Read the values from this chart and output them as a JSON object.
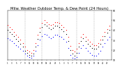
{
  "title": "Milw. Weather Outdoor Temp. & Dew Point (24 Hours)",
  "title_fontsize": 3.8,
  "background_color": "#ffffff",
  "grid_color": "#aaaaaa",
  "temp_color": "#ff0000",
  "dewpoint_color": "#0000ff",
  "dot_color": "#000000",
  "marker_size": 0.8,
  "ylim": [
    10,
    60
  ],
  "y_ticks": [
    10,
    20,
    30,
    40,
    50,
    60
  ],
  "y_tick_labels": [
    "10",
    "20",
    "30",
    "40",
    "50",
    "60"
  ],
  "xlim": [
    0,
    48
  ],
  "vlines": [
    8,
    16,
    24,
    32,
    40
  ],
  "temp_x": [
    0,
    1,
    2,
    3,
    4,
    5,
    6,
    7,
    8,
    9,
    10,
    11,
    12,
    13,
    14,
    15,
    16,
    17,
    18,
    19,
    20,
    21,
    22,
    23,
    24,
    25,
    26,
    27,
    28,
    29,
    30,
    31,
    32,
    33,
    34,
    35,
    36,
    37,
    38,
    39,
    40,
    41,
    42,
    43,
    44,
    45,
    46,
    47
  ],
  "temp_y": [
    45,
    43,
    41,
    38,
    35,
    33,
    30,
    27,
    23,
    20,
    18,
    17,
    20,
    27,
    35,
    42,
    47,
    50,
    48,
    46,
    45,
    46,
    48,
    48,
    47,
    45,
    43,
    40,
    33,
    24,
    20,
    18,
    21,
    27,
    33,
    36,
    33,
    30,
    28,
    26,
    25,
    25,
    27,
    30,
    34,
    38,
    41,
    44
  ],
  "dew_x": [
    0,
    1,
    2,
    3,
    4,
    5,
    6,
    7,
    8,
    9,
    10,
    11,
    12,
    13,
    14,
    15,
    16,
    17,
    18,
    19,
    20,
    21,
    22,
    23,
    24,
    25,
    26,
    27,
    28,
    29,
    30,
    31,
    32,
    33,
    34,
    35,
    36,
    37,
    38,
    39,
    40,
    41,
    42,
    43,
    44,
    45,
    46,
    47
  ],
  "dew_y": [
    32,
    30,
    29,
    27,
    25,
    23,
    21,
    19,
    16,
    14,
    13,
    12,
    14,
    19,
    25,
    30,
    34,
    36,
    35,
    33,
    32,
    33,
    35,
    35,
    34,
    33,
    31,
    28,
    22,
    15,
    12,
    11,
    13,
    17,
    22,
    25,
    22,
    19,
    17,
    15,
    14,
    14,
    16,
    19,
    23,
    27,
    30,
    33
  ],
  "outdoor_x": [
    0,
    1,
    2,
    3,
    4,
    5,
    6,
    7,
    8,
    9,
    10,
    11,
    12,
    13,
    14,
    15,
    16,
    17,
    18,
    19,
    20,
    21,
    22,
    23,
    24,
    25,
    26,
    27,
    28,
    29,
    30,
    31,
    32,
    33,
    34,
    35,
    36,
    37,
    38,
    39,
    40,
    41,
    42,
    43,
    44,
    45,
    46,
    47
  ],
  "outdoor_y": [
    40,
    38,
    36,
    34,
    31,
    29,
    26,
    23,
    19,
    17,
    15,
    14,
    16,
    23,
    31,
    38,
    43,
    46,
    44,
    42,
    41,
    42,
    44,
    44,
    43,
    41,
    39,
    36,
    29,
    20,
    16,
    14,
    17,
    23,
    29,
    32,
    29,
    26,
    24,
    22,
    21,
    21,
    23,
    26,
    30,
    34,
    37,
    40
  ],
  "x_tick_positions": [
    0,
    2,
    4,
    6,
    8,
    10,
    12,
    14,
    16,
    18,
    20,
    22,
    24,
    26,
    28,
    30,
    32,
    34,
    36,
    38,
    40,
    42,
    44,
    46
  ],
  "x_tick_labels": [
    "1",
    "3",
    "5",
    "7",
    "9",
    "11",
    "13",
    "15",
    "17",
    "19",
    "21",
    "23",
    "1",
    "3",
    "5",
    "7",
    "9",
    "11",
    "13",
    "15",
    "17",
    "19",
    "21",
    "23"
  ]
}
